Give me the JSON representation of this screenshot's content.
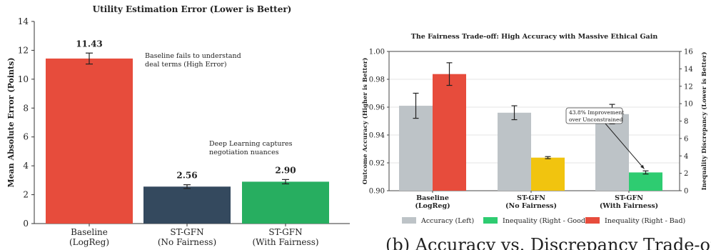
{
  "chart_data": [
    {
      "type": "bar",
      "title": "Utility Estimation Error (Lower is Better)",
      "xlabel": "",
      "ylabel": "Mean Absolute Error (Points)",
      "categories": [
        [
          "Baseline",
          "(LogReg)"
        ],
        [
          "ST-GFN",
          "(No Fairness)"
        ],
        [
          "ST-GFN",
          "(With Fairness)"
        ]
      ],
      "values": [
        11.43,
        2.56,
        2.9
      ],
      "errors": [
        0.38,
        0.13,
        0.15
      ],
      "value_labels": [
        "11.43",
        "2.56",
        "2.90"
      ],
      "colors": [
        "#e74c3c",
        "#34495e",
        "#27ae60"
      ],
      "ylim": [
        0,
        14
      ],
      "yticks": [
        "0",
        "2",
        "4",
        "6",
        "8",
        "10",
        "12",
        "14"
      ],
      "annotations": [
        [
          "Baseline fails to understand",
          "deal terms (High Error)"
        ],
        [
          "Deep Learning captures",
          "negotiation nuances"
        ]
      ]
    },
    {
      "type": "bar",
      "title": "The Fairness Trade-off: High Accuracy with Massive Ethical Gain",
      "xlabel": "",
      "ylabel_left": "Outcome Accuracy (Higher is Better)",
      "ylabel_right": "Inequality Discrepancy (Lower is Better)",
      "categories": [
        [
          "Baseline",
          "(LogReg)"
        ],
        [
          "ST-GFN",
          "(No Fairness)"
        ],
        [
          "ST-GFN",
          "(With Fairness)"
        ]
      ],
      "series": [
        {
          "name": "Accuracy (Left)",
          "axis": "left",
          "values": [
            0.961,
            0.956,
            0.955
          ],
          "errors": [
            0.009,
            0.005,
            0.007
          ]
        },
        {
          "name": "Inequality (Right)",
          "axis": "right",
          "values": [
            13.4,
            3.8,
            2.1
          ],
          "errors": [
            1.3,
            0.12,
            0.18
          ]
        }
      ],
      "bar_colors": {
        "accuracy": "#bdc3c7",
        "inequality": [
          "#e74c3c",
          "#f1c40f",
          "#2ecc71"
        ]
      },
      "ylim_left": [
        0.9,
        1.0
      ],
      "ylim_right": [
        0,
        16
      ],
      "yticks_left": [
        "0.90",
        "0.92",
        "0.94",
        "0.96",
        "0.98",
        "1.00"
      ],
      "yticks_right": [
        "0",
        "2",
        "4",
        "6",
        "8",
        "10",
        "12",
        "14",
        "16"
      ],
      "annotation": [
        "43.8% Improvement",
        "over Unconstrained"
      ],
      "legend": [
        {
          "label": "Accuracy (Left)",
          "color": "#bdc3c7"
        },
        {
          "label": "Inequality (Right - Good)",
          "color": "#2ecc71"
        },
        {
          "label": "Inequality (Right - Bad)",
          "color": "#e74c3c"
        }
      ],
      "legend_position": "bottom"
    }
  ],
  "caption": "(b) Accuracy vs. Discrepancy Trade-off. Out"
}
